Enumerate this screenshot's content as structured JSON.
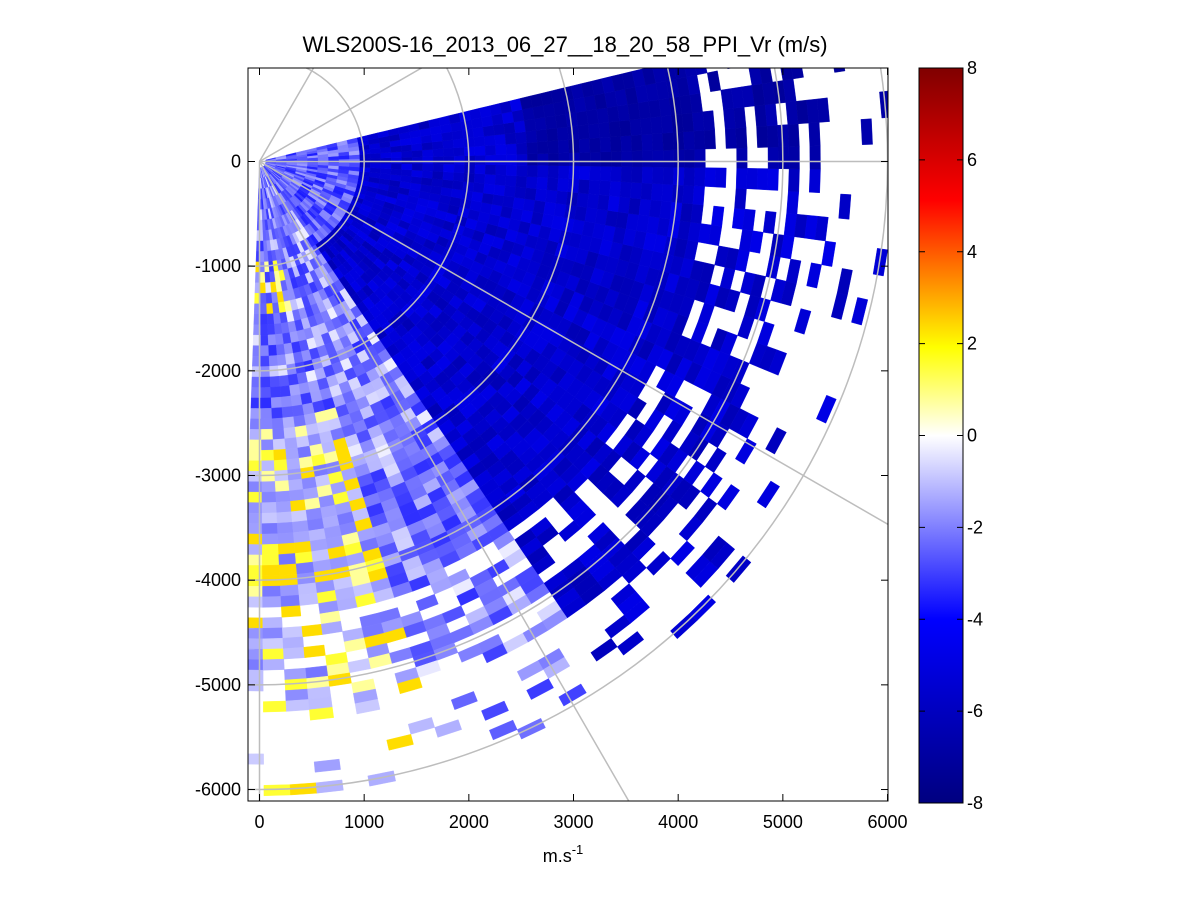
{
  "chart_data": {
    "type": "heatmap",
    "subtype": "ppi-polar-scan",
    "title": "WLS200S-16_2013_06_27__18_20_58_PPI_Vr (m/s)",
    "xlabel": "m.s",
    "xlabel_superscript": "-1",
    "ylabel": "",
    "xlim": [
      -100,
      6000
    ],
    "ylim": [
      -6100,
      900
    ],
    "x_ticks": [
      0,
      1000,
      2000,
      3000,
      4000,
      5000,
      6000
    ],
    "y_ticks": [
      0,
      -1000,
      -2000,
      -3000,
      -4000,
      -5000,
      -6000
    ],
    "x_tick_labels": [
      "0",
      "1000",
      "2000",
      "3000",
      "4000",
      "5000",
      "6000"
    ],
    "y_tick_labels": [
      "0",
      "-1000",
      "-2000",
      "-3000",
      "-4000",
      "-5000",
      "-6000"
    ],
    "range_rings_m": [
      1000,
      2000,
      3000,
      4000,
      5000,
      6000
    ],
    "spoke_angles_deg": [
      60,
      30,
      0,
      -30,
      -60
    ],
    "scan_sector_deg": [
      -92,
      12
    ],
    "max_range_m": 6000,
    "colorbar": {
      "min": -8,
      "max": 8,
      "ticks": [
        8,
        6,
        4,
        2,
        0,
        -2,
        -4,
        -6,
        -8
      ],
      "tick_labels": [
        "8",
        "6",
        "4",
        "2",
        "0",
        "-2",
        "-4",
        "-6",
        "-8"
      ],
      "colors": [
        "#000080",
        "#0000ff",
        "#ffffff",
        "#ffff00",
        "#ff0000",
        "#800000"
      ]
    },
    "field_description": {
      "dominant_value": -5.5,
      "near_lidar_value": -2.5,
      "southern_strip_value": -1.5,
      "positive_patch_values": [
        0.8,
        1.6,
        2.4
      ],
      "units": "m/s"
    }
  }
}
